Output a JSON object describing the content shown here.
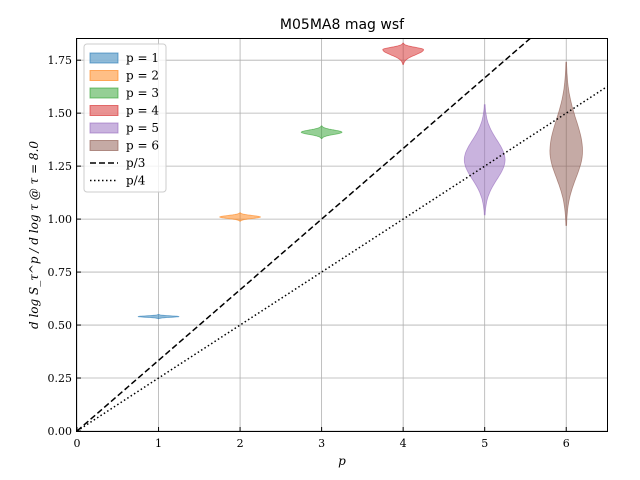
{
  "chart_data": {
    "type": "violin",
    "title": "M05MA8 mag wsf",
    "xlabel": "p",
    "ylabel": "d log S_τ^p / d log τ @ τ = 8.0",
    "xlim": [
      0,
      6.5
    ],
    "ylim": [
      0,
      1.85
    ],
    "xticks": [
      "0",
      "1",
      "2",
      "3",
      "4",
      "5",
      "6"
    ],
    "yticks": [
      "0.00",
      "0.25",
      "0.50",
      "0.75",
      "1.00",
      "1.25",
      "1.50",
      "1.75"
    ],
    "grid": true,
    "legend_position": "top-left",
    "violins": [
      {
        "label": "p = 1",
        "p": 1,
        "center": 0.54,
        "min": 0.53,
        "max": 0.55,
        "halfwidth": 0.25,
        "color": "#1f77b4"
      },
      {
        "label": "p = 2",
        "p": 2,
        "center": 1.01,
        "min": 0.99,
        "max": 1.03,
        "halfwidth": 0.25,
        "color": "#ff7f0e"
      },
      {
        "label": "p = 3",
        "p": 3,
        "center": 1.41,
        "min": 1.38,
        "max": 1.44,
        "halfwidth": 0.25,
        "color": "#2ca02c"
      },
      {
        "label": "p = 4",
        "p": 4,
        "center": 1.8,
        "min": 1.73,
        "max": 1.83,
        "halfwidth": 0.25,
        "color": "#d62728"
      },
      {
        "label": "p = 5",
        "p": 5,
        "center": 1.28,
        "min": 1.02,
        "max": 1.54,
        "halfwidth": 0.25,
        "color": "#9467bd"
      },
      {
        "label": "p = 6",
        "p": 6,
        "center": 1.32,
        "min": 0.97,
        "max": 1.74,
        "halfwidth": 0.2,
        "color": "#8c564b"
      }
    ],
    "lines": [
      {
        "label": "p/3",
        "style": "dashed",
        "slope": 0.3333333
      },
      {
        "label": "p/4",
        "style": "dotted",
        "slope": 0.25
      }
    ]
  }
}
